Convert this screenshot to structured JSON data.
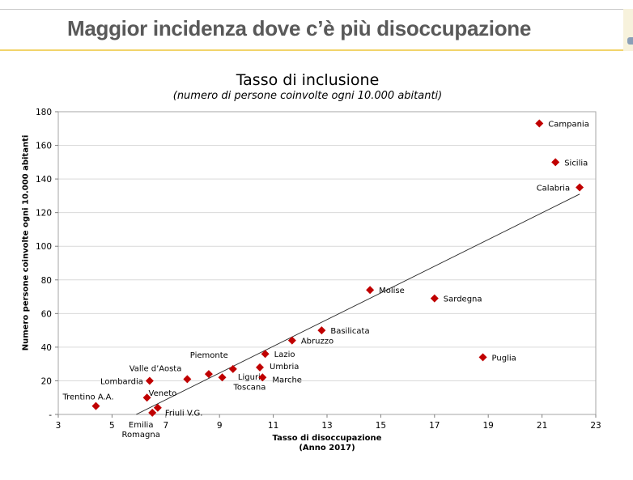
{
  "slide": {
    "title": "Maggior incidenza dove c’è più disoccupazione"
  },
  "colors": {
    "marker": "#c00000",
    "title_text": "#595959",
    "accent_rule": "#f2d46a",
    "gridline": "#d9d9d9"
  },
  "chart_data": {
    "type": "scatter",
    "title": "Tasso di inclusione",
    "subtitle": "(numero di persone coinvolte ogni 10.000 abitanti)",
    "xlabel": "Tasso di disoccupazione",
    "xlabel_sub": "(Anno 2017)",
    "ylabel": "Numero persone coinvolte ogni 10.000 abitanti",
    "xlim": [
      3,
      23
    ],
    "ylim": [
      0,
      180
    ],
    "xticks": [
      3,
      5,
      7,
      9,
      11,
      13,
      15,
      17,
      19,
      21,
      23
    ],
    "yticks": [
      0,
      20,
      40,
      60,
      80,
      100,
      120,
      140,
      160,
      180
    ],
    "ytick_labels": [
      "-",
      "20",
      "40",
      "60",
      "80",
      "100",
      "120",
      "140",
      "160",
      "180"
    ],
    "grid": "horizontal",
    "trendline": {
      "x": [
        5.9,
        22.4
      ],
      "y": [
        0,
        131
      ]
    },
    "points": [
      {
        "label": "Campania",
        "x": 20.9,
        "y": 173
      },
      {
        "label": "Sicilia",
        "x": 21.5,
        "y": 150
      },
      {
        "label": "Calabria",
        "x": 22.4,
        "y": 135
      },
      {
        "label": "Molise",
        "x": 14.6,
        "y": 74
      },
      {
        "label": "Sardegna",
        "x": 17.0,
        "y": 69
      },
      {
        "label": "Basilicata",
        "x": 12.8,
        "y": 50
      },
      {
        "label": "Abruzzo",
        "x": 11.7,
        "y": 44
      },
      {
        "label": "Lazio",
        "x": 10.7,
        "y": 36
      },
      {
        "label": "Puglia",
        "x": 18.8,
        "y": 34
      },
      {
        "label": "Piemonte",
        "x": 9.5,
        "y": 27
      },
      {
        "label": "Umbria",
        "x": 10.5,
        "y": 28
      },
      {
        "label": "Liguria",
        "x": 8.6,
        "y": 24
      },
      {
        "label": "Toscana",
        "x": 9.1,
        "y": 22
      },
      {
        "label": "Marche",
        "x": 10.6,
        "y": 22
      },
      {
        "label": "Valle d’Aosta",
        "x": 7.8,
        "y": 21
      },
      {
        "label": "Lombardia",
        "x": 6.4,
        "y": 20
      },
      {
        "label": "Veneto",
        "x": 6.3,
        "y": 10
      },
      {
        "label": "Friuli V.G.",
        "x": 6.7,
        "y": 4
      },
      {
        "label": "Emilia Romagna",
        "x": 6.5,
        "y": 1
      },
      {
        "label": "Trentino A.A.",
        "x": 4.4,
        "y": 5
      }
    ]
  }
}
